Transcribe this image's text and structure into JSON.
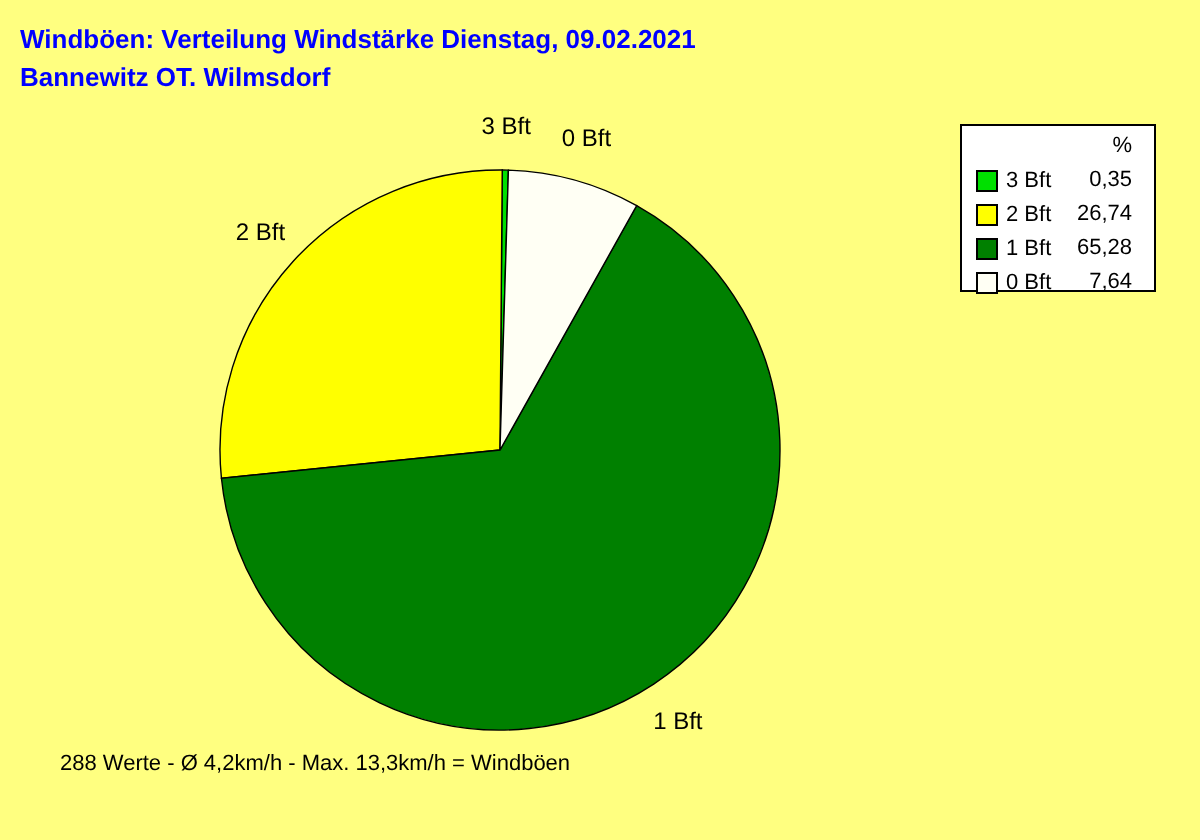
{
  "chart_data": {
    "type": "pie",
    "title": "Windböen: Verteilung Windstärke  Dienstag, 09.02.2021",
    "subtitle": "Bannewitz OT. Wilmsdorf",
    "categories": [
      "3 Bft",
      "2 Bft",
      "1 Bft",
      "0 Bft"
    ],
    "values": [
      0.35,
      26.74,
      65.28,
      7.64
    ],
    "value_labels": [
      "0,35",
      "26,74",
      "65,28",
      "7,64"
    ],
    "colors": [
      "#00e000",
      "#ffff00",
      "#008000",
      "#fffff4"
    ],
    "legend": "top right",
    "legend_title": "%",
    "annotations": [
      "288 Werte   -   Ø 4,2km/h   -   Max. 13,3km/h = Windböen"
    ]
  }
}
